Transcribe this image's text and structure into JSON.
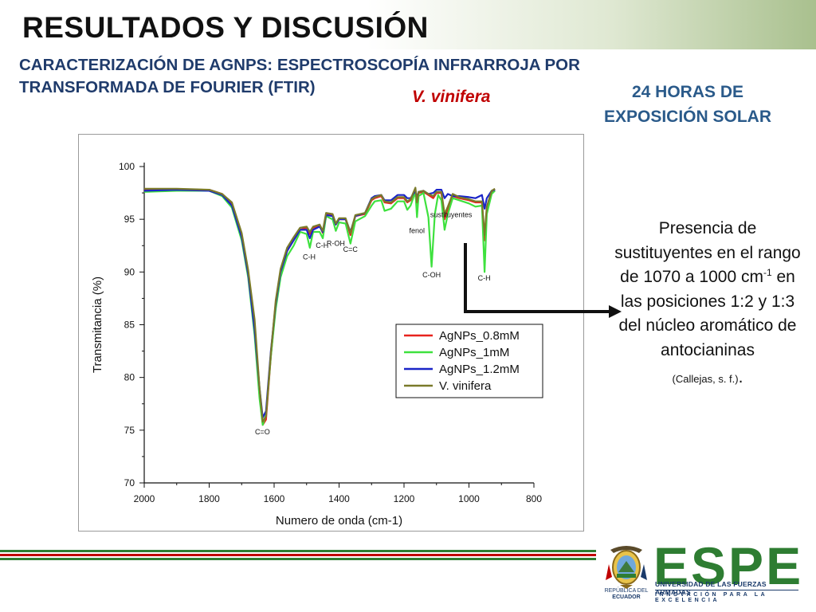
{
  "slide": {
    "title": "RESULTADOS Y DISCUSIÓN",
    "subtitle_line1": "CARACTERIZACIÓN DE AGNPS: ESPECTROSCOPÍA INFRARROJA POR",
    "subtitle_line2": "TRANSFORMADA DE FOURIER (FTIR)",
    "species": "V. vinifera",
    "exposure_line1": "24 HORAS DE",
    "exposure_line2": "EXPOSICIÓN SOLAR"
  },
  "note": {
    "text_before_sup": "Presencia de sustituyentes en el rango de 1070 a 1000 cm",
    "sup": "-1",
    "text_after_sup": " en las posiciones 1:2 y 1:3 del núcleo aromático de antocianinas",
    "citation": "(Callejas, s. f.)",
    "period": "."
  },
  "footer": {
    "university": "UNIVERSIDAD DE LAS FUERZAS ARMADAS",
    "motto": "INNOVACIÓN PARA LA EXCELENCIA",
    "brand": "ESPE",
    "seal_caption_1": "REPÚBLICA DEL",
    "seal_caption_2": "ECUADOR",
    "colors": {
      "brand_green": "#2e7d32",
      "navy": "#1a3a6a",
      "red": "#c00000"
    }
  },
  "chart_data": {
    "type": "line",
    "xlabel": "Numero de onda (cm-1)",
    "ylabel": "Transmitancia (%)",
    "xlim": [
      2000,
      800
    ],
    "ylim": [
      70,
      100
    ],
    "x_reversed": true,
    "xticks": [
      2000,
      1800,
      1600,
      1400,
      1200,
      1000,
      800
    ],
    "yticks": [
      100,
      95,
      90,
      85,
      80,
      75,
      70
    ],
    "legend_position": "lower-right",
    "series": [
      {
        "name": "AgNPs_0.8mM",
        "color": "#e8231e",
        "points": [
          [
            2000,
            97.8
          ],
          [
            1900,
            97.8
          ],
          [
            1800,
            97.8
          ],
          [
            1760,
            97.4
          ],
          [
            1730,
            96.5
          ],
          [
            1700,
            93.5
          ],
          [
            1680,
            90
          ],
          [
            1660,
            85
          ],
          [
            1645,
            78.5
          ],
          [
            1635,
            75.5
          ],
          [
            1625,
            76
          ],
          [
            1610,
            82
          ],
          [
            1595,
            87
          ],
          [
            1580,
            90
          ],
          [
            1560,
            92
          ],
          [
            1540,
            93
          ],
          [
            1520,
            94
          ],
          [
            1500,
            94.2
          ],
          [
            1490,
            93.6
          ],
          [
            1480,
            94.2
          ],
          [
            1460,
            94.4
          ],
          [
            1450,
            93.7
          ],
          [
            1440,
            95.5
          ],
          [
            1420,
            95.4
          ],
          [
            1410,
            94.5
          ],
          [
            1400,
            95
          ],
          [
            1380,
            95
          ],
          [
            1365,
            93.5
          ],
          [
            1350,
            95.3
          ],
          [
            1320,
            95.5
          ],
          [
            1300,
            96.8
          ],
          [
            1290,
            97
          ],
          [
            1270,
            97.2
          ],
          [
            1260,
            96.6
          ],
          [
            1240,
            96.5
          ],
          [
            1220,
            97
          ],
          [
            1200,
            97
          ],
          [
            1190,
            96.6
          ],
          [
            1180,
            96.8
          ],
          [
            1165,
            97.6
          ],
          [
            1160,
            96.5
          ],
          [
            1155,
            97.5
          ],
          [
            1140,
            97.6
          ],
          [
            1125,
            97.3
          ],
          [
            1110,
            97
          ],
          [
            1100,
            97.5
          ],
          [
            1085,
            97.5
          ],
          [
            1075,
            95
          ],
          [
            1065,
            96
          ],
          [
            1050,
            97.2
          ],
          [
            1030,
            97
          ],
          [
            1000,
            96.8
          ],
          [
            980,
            96.6
          ],
          [
            960,
            96.6
          ],
          [
            952,
            93
          ],
          [
            945,
            96
          ],
          [
            930,
            97.6
          ],
          [
            920,
            97.8
          ]
        ]
      },
      {
        "name": "AgNPs_1mM",
        "color": "#3ee13e",
        "points": [
          [
            2000,
            97.6
          ],
          [
            1900,
            97.7
          ],
          [
            1800,
            97.7
          ],
          [
            1760,
            97.2
          ],
          [
            1730,
            96.1
          ],
          [
            1700,
            93
          ],
          [
            1680,
            89.5
          ],
          [
            1660,
            84
          ],
          [
            1645,
            78
          ],
          [
            1635,
            75.5
          ],
          [
            1625,
            76.5
          ],
          [
            1610,
            82
          ],
          [
            1595,
            86.5
          ],
          [
            1580,
            89.5
          ],
          [
            1560,
            91.5
          ],
          [
            1540,
            92.5
          ],
          [
            1520,
            93.8
          ],
          [
            1500,
            93.6
          ],
          [
            1490,
            92.3
          ],
          [
            1480,
            93.8
          ],
          [
            1460,
            93.8
          ],
          [
            1450,
            93.2
          ],
          [
            1440,
            95.3
          ],
          [
            1420,
            95
          ],
          [
            1410,
            93.9
          ],
          [
            1400,
            94.7
          ],
          [
            1380,
            94.6
          ],
          [
            1365,
            92.7
          ],
          [
            1350,
            94.8
          ],
          [
            1320,
            95.3
          ],
          [
            1300,
            96.3
          ],
          [
            1290,
            96.7
          ],
          [
            1270,
            96.8
          ],
          [
            1260,
            95.8
          ],
          [
            1240,
            96
          ],
          [
            1220,
            96.7
          ],
          [
            1200,
            96.7
          ],
          [
            1190,
            95.9
          ],
          [
            1180,
            96.3
          ],
          [
            1165,
            97.6
          ],
          [
            1160,
            95.2
          ],
          [
            1155,
            97.2
          ],
          [
            1140,
            97.5
          ],
          [
            1125,
            95.2
          ],
          [
            1115,
            90.5
          ],
          [
            1105,
            95.5
          ],
          [
            1095,
            97.3
          ],
          [
            1085,
            96.8
          ],
          [
            1075,
            94
          ],
          [
            1065,
            95.5
          ],
          [
            1050,
            97
          ],
          [
            1030,
            96.8
          ],
          [
            1000,
            96.5
          ],
          [
            980,
            96.2
          ],
          [
            960,
            96.3
          ],
          [
            952,
            90
          ],
          [
            945,
            95.5
          ],
          [
            930,
            97.4
          ],
          [
            920,
            97.7
          ]
        ]
      },
      {
        "name": "AgNPs_1.2mM",
        "color": "#1a24c7",
        "points": [
          [
            2000,
            97.7
          ],
          [
            1900,
            97.8
          ],
          [
            1800,
            97.7
          ],
          [
            1760,
            97.3
          ],
          [
            1730,
            96.3
          ],
          [
            1700,
            93.3
          ],
          [
            1680,
            89.8
          ],
          [
            1660,
            84.5
          ],
          [
            1645,
            79
          ],
          [
            1635,
            76.2
          ],
          [
            1625,
            76.8
          ],
          [
            1610,
            82.5
          ],
          [
            1595,
            87
          ],
          [
            1580,
            90
          ],
          [
            1560,
            92
          ],
          [
            1540,
            93
          ],
          [
            1520,
            94
          ],
          [
            1500,
            94
          ],
          [
            1490,
            93.2
          ],
          [
            1480,
            94
          ],
          [
            1460,
            94.3
          ],
          [
            1450,
            93.8
          ],
          [
            1440,
            95.4
          ],
          [
            1420,
            95.3
          ],
          [
            1410,
            94.5
          ],
          [
            1400,
            95
          ],
          [
            1380,
            95
          ],
          [
            1365,
            93.8
          ],
          [
            1350,
            95.3
          ],
          [
            1320,
            95.6
          ],
          [
            1300,
            97
          ],
          [
            1290,
            97.2
          ],
          [
            1270,
            97.3
          ],
          [
            1260,
            96.8
          ],
          [
            1240,
            96.8
          ],
          [
            1220,
            97.3
          ],
          [
            1200,
            97.3
          ],
          [
            1190,
            97
          ],
          [
            1180,
            97
          ],
          [
            1165,
            97.7
          ],
          [
            1160,
            97
          ],
          [
            1155,
            97.6
          ],
          [
            1140,
            97.7
          ],
          [
            1125,
            97.4
          ],
          [
            1110,
            97.5
          ],
          [
            1100,
            97.8
          ],
          [
            1085,
            97.8
          ],
          [
            1075,
            97
          ],
          [
            1065,
            97.4
          ],
          [
            1050,
            97.2
          ],
          [
            1030,
            97.2
          ],
          [
            1000,
            97.1
          ],
          [
            980,
            97
          ],
          [
            960,
            97.3
          ],
          [
            952,
            96
          ],
          [
            945,
            97
          ],
          [
            930,
            97.7
          ],
          [
            920,
            97.8
          ]
        ]
      },
      {
        "name": "V. vinifera",
        "color": "#7a7a2a",
        "points": [
          [
            2000,
            97.9
          ],
          [
            1900,
            97.9
          ],
          [
            1800,
            97.8
          ],
          [
            1760,
            97.4
          ],
          [
            1730,
            96.6
          ],
          [
            1700,
            93.7
          ],
          [
            1680,
            90.2
          ],
          [
            1660,
            85.5
          ],
          [
            1645,
            79
          ],
          [
            1635,
            75.8
          ],
          [
            1625,
            76.3
          ],
          [
            1610,
            82.3
          ],
          [
            1595,
            87.3
          ],
          [
            1580,
            90.3
          ],
          [
            1560,
            92.3
          ],
          [
            1540,
            93.3
          ],
          [
            1520,
            94.2
          ],
          [
            1500,
            94.3
          ],
          [
            1490,
            93.8
          ],
          [
            1480,
            94.3
          ],
          [
            1460,
            94.5
          ],
          [
            1450,
            93.9
          ],
          [
            1440,
            95.6
          ],
          [
            1420,
            95.5
          ],
          [
            1410,
            94.6
          ],
          [
            1400,
            95.1
          ],
          [
            1380,
            95.1
          ],
          [
            1365,
            93.7
          ],
          [
            1350,
            95.4
          ],
          [
            1320,
            95.6
          ],
          [
            1300,
            96.9
          ],
          [
            1290,
            97.1
          ],
          [
            1270,
            97.3
          ],
          [
            1260,
            96.7
          ],
          [
            1240,
            96.6
          ],
          [
            1220,
            97.1
          ],
          [
            1200,
            97.1
          ],
          [
            1190,
            96.7
          ],
          [
            1180,
            96.9
          ],
          [
            1165,
            98
          ],
          [
            1160,
            96.6
          ],
          [
            1155,
            97.6
          ],
          [
            1140,
            97.7
          ],
          [
            1125,
            97.4
          ],
          [
            1110,
            97.2
          ],
          [
            1100,
            97.6
          ],
          [
            1085,
            97.6
          ],
          [
            1075,
            95.5
          ],
          [
            1065,
            96.2
          ],
          [
            1050,
            97.4
          ],
          [
            1030,
            97.1
          ],
          [
            1000,
            96.9
          ],
          [
            980,
            96.7
          ],
          [
            960,
            96.7
          ],
          [
            952,
            93.5
          ],
          [
            945,
            96.2
          ],
          [
            930,
            97.7
          ],
          [
            920,
            97.9
          ]
        ]
      }
    ],
    "annotations": [
      {
        "label": "C=O",
        "x": 1636,
        "y": 74.6
      },
      {
        "label": "C-H",
        "x": 1492,
        "y": 91.2
      },
      {
        "label": "C-H",
        "x": 1452,
        "y": 92.3
      },
      {
        "label": "R-OH",
        "x": 1410,
        "y": 92.5
      },
      {
        "label": "C=C",
        "x": 1365,
        "y": 91.9
      },
      {
        "label": "fenol",
        "x": 1160,
        "y": 93.7
      },
      {
        "label": "sustituyentes",
        "x": 1055,
        "y": 95.2
      },
      {
        "label": "C-OH",
        "x": 1115,
        "y": 89.5
      },
      {
        "label": "C-H",
        "x": 953,
        "y": 89.2
      }
    ]
  }
}
